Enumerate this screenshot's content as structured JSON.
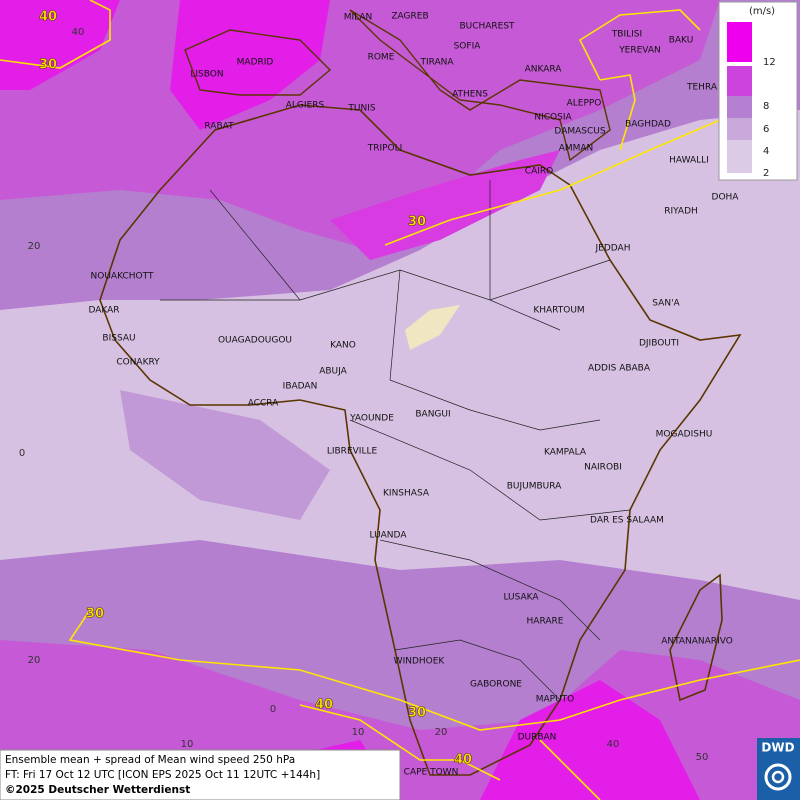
{
  "caption": {
    "line1": "Ensemble mean + spread of Mean wind speed 250 hPa",
    "line2": "FT: Fri 17 Oct 12 UTC [ICON EPS 2025 Oct 11 12UTC +144h]",
    "line3": "©2025 Deutscher Wetterdienst"
  },
  "legend": {
    "unit": "(m/s)",
    "levels": [
      12,
      8,
      6,
      4,
      2
    ]
  },
  "logo": "DWD",
  "contour_labels": [
    40,
    30,
    30,
    30,
    40,
    30,
    40
  ],
  "grid_labels": [
    40,
    20,
    0,
    20,
    10,
    0,
    10,
    20,
    40,
    50
  ],
  "cities": [
    "MILAN",
    "ZAGREB",
    "BUCHAREST",
    "SOFIA",
    "ROME",
    "TIRANA",
    "ANKARA",
    "MADRID",
    "LISBON",
    "ATHENS",
    "ALGIERS",
    "TUNIS",
    "ALEPPO",
    "NICOSIA",
    "BAGHDAD",
    "RABAT",
    "DAMASCUS",
    "AMMAN",
    "TRIPOLI",
    "TBILISI",
    "YEREVAN",
    "BAKU",
    "TEHRA",
    "HAWALLI",
    "DOHA",
    "RIYADH",
    "CAIRO",
    "JEDDAH",
    "NOUAKCHOTT",
    "SAN'A",
    "DAKAR",
    "KHARTOUM",
    "BISSAU",
    "OUAGADOUGOU",
    "DJIBOUTI",
    "KANO",
    "CONAKRY",
    "ABUJA",
    "ADDIS ABABA",
    "IBADAN",
    "ACCRA",
    "BANGUI",
    "YAOUNDE",
    "MOGADISHU",
    "LIBREVILLE",
    "KAMPALA",
    "NAIROBI",
    "BUJUMBURA",
    "KINSHASA",
    "DAR ES SALAAM",
    "LUANDA",
    "LUSAKA",
    "HARARE",
    "ANTANANARIVO",
    "WINDHOEK",
    "GABORONE",
    "MAPUTO",
    "DURBAN",
    "CAPE TOWN"
  ]
}
